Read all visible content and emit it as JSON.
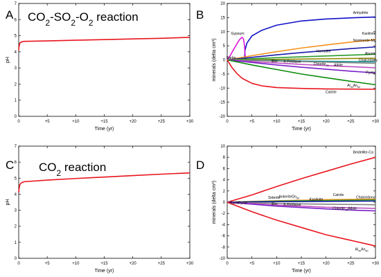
{
  "figure": {
    "letters": [
      "A",
      "B",
      "C",
      "D"
    ]
  },
  "chart_data": [
    {
      "id": "A",
      "type": "line",
      "title": "CO₂-SO₂-O₂ reaction",
      "title_parts": [
        {
          "t": "CO",
          "sub": false
        },
        {
          "t": "2",
          "sub": true
        },
        {
          "t": "-SO",
          "sub": false
        },
        {
          "t": "2",
          "sub": true
        },
        {
          "t": "-O",
          "sub": false
        },
        {
          "t": "2",
          "sub": true
        },
        {
          "t": " reaction",
          "sub": false
        }
      ],
      "xlabel": "Time (yr)",
      "ylabel": "pH",
      "xlim": [
        0,
        30
      ],
      "ylim": [
        0,
        7
      ],
      "x_ticks": [
        0,
        5,
        10,
        15,
        20,
        25,
        30
      ],
      "x_tick_labels": [
        "0",
        "+5",
        "+10",
        "+15",
        "+20",
        "+25",
        "+30"
      ],
      "y_ticks": [
        0,
        1,
        2,
        3,
        4,
        5,
        6,
        7
      ],
      "y_tick_labels": [
        "0",
        "1",
        "2",
        "3",
        "4",
        "5",
        "6",
        "7"
      ],
      "series": [
        {
          "color": "#e8141c",
          "x": [
            0,
            0.05,
            0.2,
            0.5,
            1,
            5,
            10,
            15,
            20,
            25,
            30
          ],
          "y": [
            4.1,
            4.3,
            4.55,
            4.62,
            4.65,
            4.68,
            4.72,
            4.76,
            4.8,
            4.84,
            4.9
          ]
        }
      ]
    },
    {
      "id": "B",
      "type": "line",
      "xlabel": "Time (yr)",
      "ylabel": "minerals (delta cm³)",
      "ylabel_parts": [
        {
          "t": "minerals (delta cm",
          "sup": false
        },
        {
          "t": "3",
          "sup": true
        },
        {
          "t": ")",
          "sup": false
        }
      ],
      "xlim": [
        0,
        30
      ],
      "ylim": [
        -20,
        20
      ],
      "x_ticks": [
        0,
        5,
        10,
        15,
        20,
        25,
        30
      ],
      "x_tick_labels": [
        "0",
        "+5",
        "+10",
        "+15",
        "+20",
        "+25",
        "+30"
      ],
      "y_ticks": [
        -20,
        -15,
        -10,
        -5,
        0,
        5,
        10,
        15,
        20
      ],
      "y_tick_labels": [
        "-20",
        "-15",
        "-10",
        "-5",
        "0",
        "5",
        "10",
        "15",
        "20"
      ],
      "series": [
        {
          "color": "#1010c8",
          "x": [
            3.5,
            3.6,
            4,
            5,
            7,
            10,
            15,
            20,
            25,
            30
          ],
          "y": [
            0,
            3.5,
            6,
            8.5,
            10.5,
            12.3,
            13.8,
            14.5,
            14.9,
            15.2
          ]
        },
        {
          "color": "#d916d9",
          "x": [
            0,
            0.5,
            1,
            2,
            2.5,
            3,
            3.3,
            3.5,
            3.6,
            3.8
          ],
          "y": [
            0,
            1.2,
            2.8,
            5.8,
            7.2,
            8,
            7.4,
            5,
            2,
            0
          ]
        },
        {
          "color": "#f5911e",
          "x": [
            0,
            5,
            10,
            15,
            20,
            25,
            30
          ],
          "y": [
            0,
            1.5,
            2.9,
            4.2,
            5.3,
            6.3,
            7.2
          ]
        },
        {
          "color": "#1a1aa8",
          "x": [
            0,
            5,
            10,
            15,
            20,
            25,
            30
          ],
          "y": [
            0,
            0.9,
            1.8,
            2.6,
            3.3,
            4,
            4.6
          ]
        },
        {
          "color": "#2a9a2a",
          "x": [
            0,
            5,
            10,
            15,
            20,
            25,
            30
          ],
          "y": [
            0,
            0.4,
            0.8,
            1.1,
            1.4,
            1.7,
            2
          ]
        },
        {
          "color": "#8a8a00",
          "x": [
            0,
            5,
            10,
            15,
            20,
            25,
            30
          ],
          "y": [
            0,
            0.1,
            0.2,
            0.3,
            0.4,
            0.5,
            0.6
          ]
        },
        {
          "color": "#1a9a9a",
          "x": [
            0,
            5,
            10,
            15,
            20,
            25,
            30
          ],
          "y": [
            0,
            -0.1,
            -0.2,
            -0.4,
            -0.5,
            -0.6,
            -0.7
          ]
        },
        {
          "color": "#808080",
          "x": [
            0,
            5,
            10,
            15,
            20,
            25,
            30
          ],
          "y": [
            0,
            -0.2,
            -0.4,
            -0.6,
            -0.8,
            -1.0,
            -1.2
          ]
        },
        {
          "color": "#c050c0",
          "x": [
            0,
            5,
            10,
            15,
            20,
            25,
            30
          ],
          "y": [
            0,
            -0.6,
            -1.1,
            -1.6,
            -2.0,
            -2.4,
            -2.8
          ]
        },
        {
          "color": "#7a20c8",
          "x": [
            0,
            5,
            10,
            15,
            20,
            25,
            30
          ],
          "y": [
            0,
            -0.9,
            -1.8,
            -2.6,
            -3.3,
            -4,
            -4.6
          ]
        },
        {
          "color": "#0a8a0a",
          "x": [
            0,
            5,
            10,
            15,
            20,
            25,
            30
          ],
          "y": [
            0,
            -1.8,
            -3.4,
            -5,
            -6.3,
            -7.6,
            -8.8
          ]
        },
        {
          "color": "#e8141c",
          "x": [
            0,
            1,
            2,
            3,
            5,
            7,
            10,
            15,
            20,
            25,
            30
          ],
          "y": [
            0,
            -2.8,
            -4.9,
            -6.5,
            -8.3,
            -9.2,
            -9.8,
            -10.1,
            -10.3,
            -10.35,
            -10.4
          ]
        }
      ],
      "annotations": [
        {
          "text": "Anhydrite",
          "x": 27,
          "y": 16.3,
          "anchor": "middle"
        },
        {
          "text": "Gypsum",
          "x": 2.1,
          "y": 8.9,
          "anchor": "middle"
        },
        {
          "text": "Kaolinite",
          "x": 28.7,
          "y": 9.0,
          "anchor": "middle"
        },
        {
          "text": "Nontronite-Mg",
          "x": 27.8,
          "y": 6.5,
          "anchor": "middle"
        },
        {
          "text": "Hematite",
          "x": 19.5,
          "y": 2.7,
          "anchor": "middle"
        },
        {
          "text": "Barite",
          "x": 0.8,
          "y": 0.4,
          "anchor": "middle"
        },
        {
          "text": "Alunite",
          "x": 29,
          "y": 1.8,
          "anchor": "middle"
        },
        {
          "text": "Chalcedony",
          "x": 28.5,
          "y": -0.5,
          "anchor": "middle"
        },
        {
          "text": "Illite",
          "x": 8.9,
          "y": -0.9,
          "anchor": "start"
        },
        {
          "text": "K-Feldspar",
          "x": 11.4,
          "y": -1.0,
          "anchor": "start"
        }
      ],
      "rich_annotations": [
        {
          "x": 19.0,
          "y": -1.8,
          "parts": [
            {
              "t": "Chlorite",
              "s": "n"
            },
            {
              "t": "75",
              "s": "sub"
            }
          ]
        },
        {
          "x": 22.5,
          "y": -2.2,
          "parts": [
            {
              "t": "Albite",
              "s": "n"
            }
          ]
        },
        {
          "x": 29,
          "y": -4.9,
          "parts": [
            {
              "t": "Pyrite",
              "s": "n"
            }
          ]
        },
        {
          "x": 25.6,
          "y": -9.5,
          "parts": [
            {
              "t": "Al",
              "s": "n"
            },
            {
              "t": "40",
              "s": "sub"
            },
            {
              "t": "An",
              "s": "n"
            },
            {
              "t": "60",
              "s": "sub"
            }
          ]
        },
        {
          "x": 21,
          "y": -11.8,
          "parts": [
            {
              "t": "Calcite",
              "s": "n"
            }
          ]
        }
      ]
    },
    {
      "id": "C",
      "type": "line",
      "title": "CO₂ reaction",
      "title_parts": [
        {
          "t": "CO",
          "sub": false
        },
        {
          "t": "2",
          "sub": true
        },
        {
          "t": " reaction",
          "sub": false
        }
      ],
      "xlabel": "Time (yr)",
      "ylabel": "pH",
      "xlim": [
        0,
        30
      ],
      "ylim": [
        0,
        7
      ],
      "x_ticks": [
        0,
        5,
        10,
        15,
        20,
        25,
        30
      ],
      "x_tick_labels": [
        "0",
        "+5",
        "+10",
        "+15",
        "+20",
        "+25",
        "+30"
      ],
      "y_ticks": [
        0,
        1,
        2,
        3,
        4,
        5,
        6,
        7
      ],
      "y_tick_labels": [
        "0",
        "1",
        "2",
        "3",
        "4",
        "5",
        "6",
        "7"
      ],
      "series": [
        {
          "color": "#e8141c",
          "x": [
            0,
            0.05,
            0.2,
            0.5,
            1,
            5,
            10,
            15,
            20,
            25,
            30
          ],
          "y": [
            4.1,
            4.3,
            4.6,
            4.72,
            4.78,
            4.88,
            4.98,
            5.07,
            5.16,
            5.25,
            5.33
          ]
        }
      ]
    },
    {
      "id": "D",
      "type": "line",
      "xlabel": "Time (yr)",
      "ylabel": "minerals (delta cm³)",
      "ylabel_parts": [
        {
          "t": "minerals (delta cm",
          "sup": false
        },
        {
          "t": "3",
          "sup": true
        },
        {
          "t": ")",
          "sup": false
        }
      ],
      "xlim": [
        0,
        30
      ],
      "ylim": [
        -10,
        10
      ],
      "x_ticks": [
        0,
        5,
        10,
        15,
        20,
        25,
        30
      ],
      "x_tick_labels": [
        "0",
        "+5",
        "+10",
        "+15",
        "+20",
        "+25",
        "+30"
      ],
      "y_ticks": [
        -10,
        -8,
        -6,
        -4,
        -2,
        0,
        2,
        4,
        6,
        8,
        10
      ],
      "y_tick_labels": [
        "-10",
        "-8",
        "-6",
        "-4",
        "-2",
        "0",
        "2",
        "4",
        "6",
        "8",
        "10"
      ],
      "series": [
        {
          "color": "#e8141c",
          "x": [
            0,
            5,
            10,
            15,
            20,
            25,
            30
          ],
          "y": [
            0,
            1.3,
            2.8,
            4.2,
            5.5,
            6.8,
            8.0
          ]
        },
        {
          "color": "#f5911e",
          "x": [
            0,
            5,
            10,
            15,
            20,
            25,
            30
          ],
          "y": [
            0,
            0.15,
            0.25,
            0.35,
            0.45,
            0.5,
            0.55
          ]
        },
        {
          "color": "#2a9a2a",
          "x": [
            0,
            5,
            10,
            15,
            20,
            25,
            30
          ],
          "y": [
            0,
            0.1,
            0.2,
            0.25,
            0.3,
            0.35,
            0.4
          ]
        },
        {
          "color": "#1a1aa8",
          "x": [
            0,
            5,
            10,
            15,
            20,
            25,
            30
          ],
          "y": [
            0,
            0.05,
            0.1,
            0.12,
            0.15,
            0.18,
            0.2
          ]
        },
        {
          "color": "#808080",
          "x": [
            0,
            5,
            10,
            15,
            20,
            25,
            30
          ],
          "y": [
            0,
            -0.1,
            -0.2,
            -0.3,
            -0.35,
            -0.4,
            -0.45
          ]
        },
        {
          "color": "#c050c0",
          "x": [
            0,
            5,
            10,
            15,
            20,
            25,
            30
          ],
          "y": [
            0,
            -0.25,
            -0.5,
            -0.7,
            -0.9,
            -1.0,
            -1.1
          ]
        },
        {
          "color": "#7a20c8",
          "x": [
            0,
            5,
            10,
            15,
            20,
            25,
            30
          ],
          "y": [
            0,
            -0.35,
            -0.7,
            -0.95,
            -1.2,
            -1.4,
            -1.55
          ]
        },
        {
          "color": "#e8141c",
          "x": [
            0,
            5,
            10,
            15,
            20,
            25,
            30
          ],
          "y": [
            0,
            -1.7,
            -3.2,
            -4.5,
            -5.8,
            -6.8,
            -7.8
          ]
        }
      ],
      "annotations": [
        {
          "text": "Beidellite-Ca",
          "x": 27.5,
          "y": 8.7,
          "anchor": "middle"
        },
        {
          "text": "Siderite",
          "x": 9.5,
          "y": 0.6,
          "anchor": "middle"
        },
        {
          "text": "Calcite",
          "x": 22.5,
          "y": 1.1,
          "anchor": "middle"
        },
        {
          "text": "Chalcedony",
          "x": 28,
          "y": 0.7,
          "anchor": "middle"
        },
        {
          "text": "Kaolinite",
          "x": 18,
          "y": 0.3,
          "anchor": "middle"
        },
        {
          "text": "Barite",
          "x": 0.6,
          "y": -0.3,
          "anchor": "start"
        },
        {
          "text": "Pyrite",
          "x": 2.2,
          "y": -0.3,
          "anchor": "start"
        },
        {
          "text": "Illite",
          "x": 8.9,
          "y": -0.5,
          "anchor": "start"
        },
        {
          "text": "K-Feldspar",
          "x": 11.4,
          "y": -0.6,
          "anchor": "start"
        }
      ],
      "rich_annotations": [
        {
          "x": 12.5,
          "y": 0.8,
          "parts": [
            {
              "t": "AnkeriteDo",
              "s": "n"
            },
            {
              "t": "50",
              "s": "sub"
            }
          ]
        },
        {
          "x": 23.8,
          "y": -1.3,
          "parts": [
            {
              "t": "Chlorite",
              "s": "n"
            },
            {
              "t": "75",
              "s": "sub"
            },
            {
              "t": "Albite",
              "s": "n"
            }
          ]
        },
        {
          "x": 27.2,
          "y": -8.6,
          "parts": [
            {
              "t": "Al",
              "s": "n"
            },
            {
              "t": "40",
              "s": "sub"
            },
            {
              "t": "An",
              "s": "n"
            },
            {
              "t": "60",
              "s": "sub"
            }
          ]
        }
      ]
    }
  ]
}
